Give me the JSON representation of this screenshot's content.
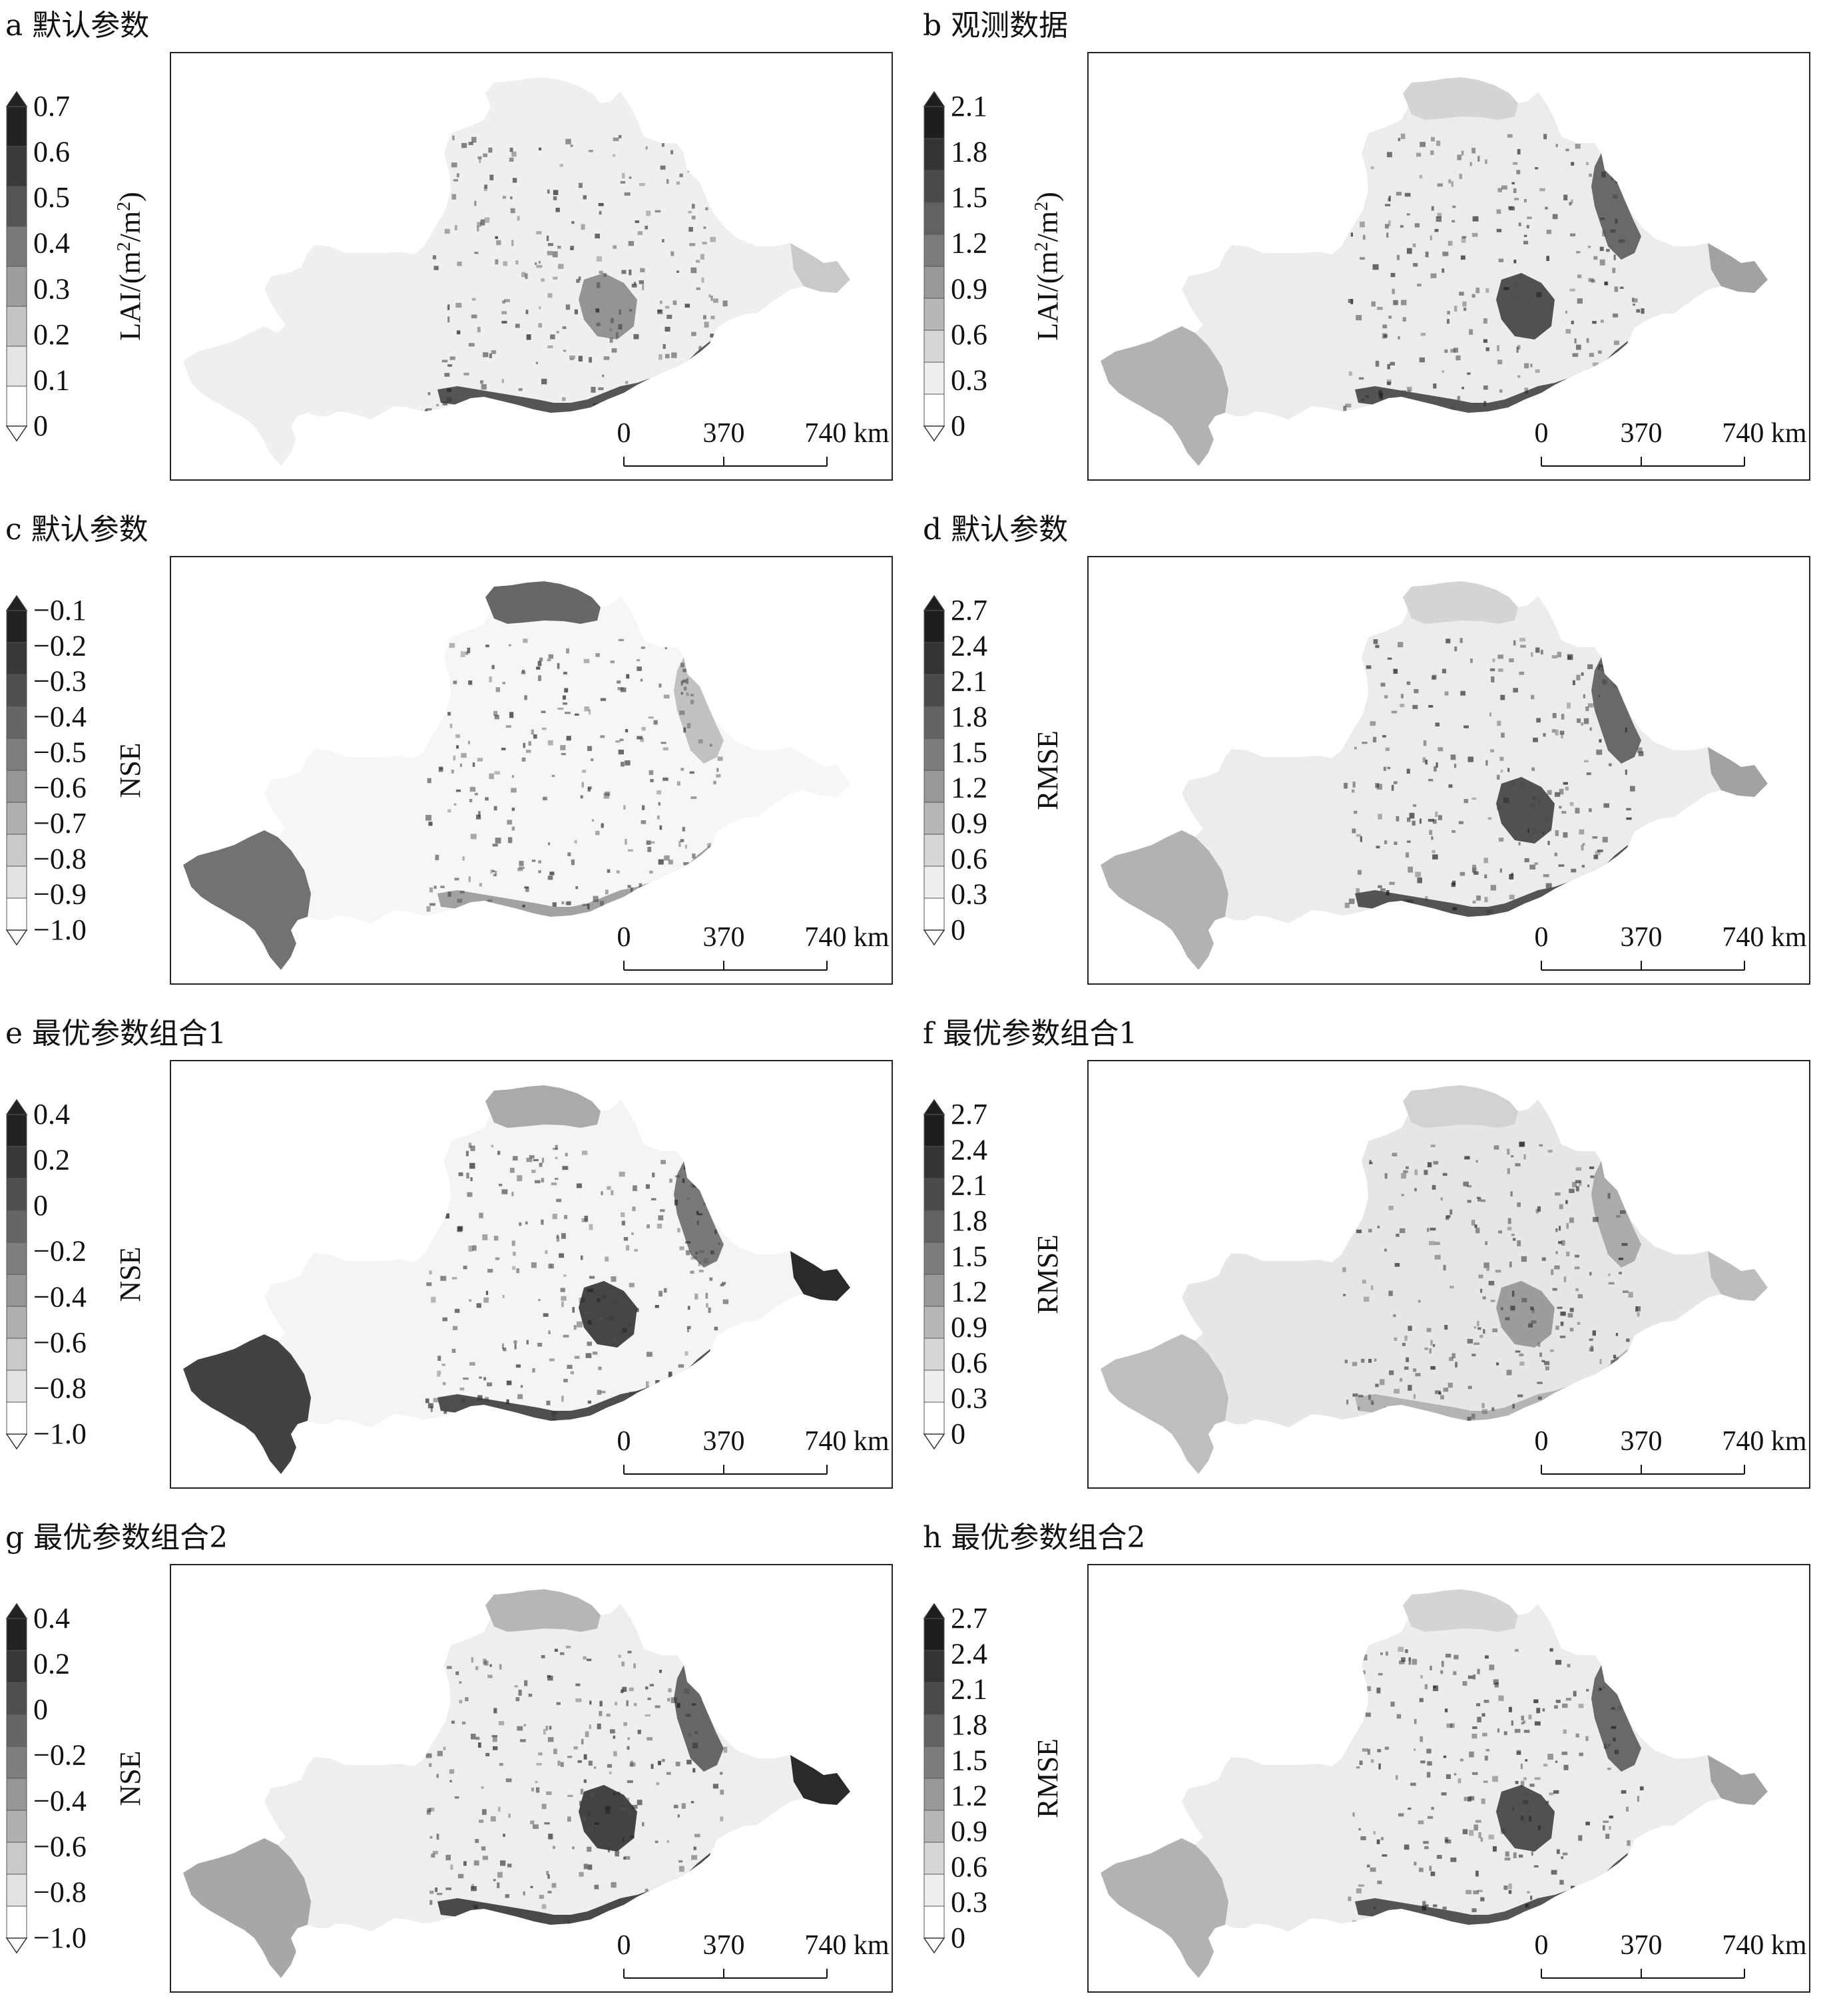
{
  "panels": [
    {
      "id": "a",
      "title": "a 默认参数",
      "legend_title": "LAI/(m²/m²)",
      "legend_title_parts": [
        "LAI/(m",
        "2",
        "/m",
        "2",
        ")"
      ],
      "ticks": [
        "0.7",
        "0.6",
        "0.5",
        "0.4",
        "0.3",
        "0.2",
        "0.1",
        "0"
      ],
      "ramp": [
        "#222222",
        "#3a3a3a",
        "#555555",
        "#7a7a7a",
        "#9e9e9e",
        "#c4c4c4",
        "#e4e4e4",
        "#ffffff"
      ],
      "fill_style": "flat"
    },
    {
      "id": "b",
      "title": "b 观测数据",
      "legend_title": "LAI/(m²/m²)",
      "legend_title_parts": [
        "LAI/(m",
        "2",
        "/m",
        "2",
        ")"
      ],
      "ticks": [
        "2.1",
        "1.8",
        "1.5",
        "1.2",
        "0.9",
        "0.6",
        "0.3",
        "0"
      ],
      "ramp": [
        "#1e1e1e",
        "#333333",
        "#4a4a4a",
        "#626262",
        "#7c7c7c",
        "#989898",
        "#b7b7b7",
        "#d6d6d6",
        "#efefef",
        "#ffffff"
      ],
      "fill_style": "observed"
    },
    {
      "id": "c",
      "title": "c 默认参数",
      "legend_title": "NSE",
      "legend_title_parts": [
        "NSE"
      ],
      "ticks": [
        "−0.1",
        "−0.2",
        "−0.3",
        "−0.4",
        "−0.5",
        "−0.6",
        "−0.7",
        "−0.8",
        "−0.9",
        "−1.0"
      ],
      "ramp": [
        "#222222",
        "#383838",
        "#4f4f4f",
        "#666666",
        "#7e7e7e",
        "#979797",
        "#b0b0b0",
        "#c9c9c9",
        "#e2e2e2",
        "#ffffff"
      ],
      "fill_style": "nse_default"
    },
    {
      "id": "d",
      "title": "d 默认参数",
      "legend_title": "RMSE",
      "legend_title_parts": [
        "RMSE"
      ],
      "ticks": [
        "2.7",
        "2.4",
        "2.1",
        "1.8",
        "1.5",
        "1.2",
        "0.9",
        "0.6",
        "0.3",
        "0"
      ],
      "ramp": [
        "#1e1e1e",
        "#333333",
        "#4a4a4a",
        "#626262",
        "#7c7c7c",
        "#989898",
        "#b7b7b7",
        "#d6d6d6",
        "#efefef",
        "#ffffff"
      ],
      "fill_style": "observed"
    },
    {
      "id": "e",
      "title": "e 最优参数组合1",
      "legend_title": "NSE",
      "legend_title_parts": [
        "NSE"
      ],
      "ticks": [
        "0.4",
        "0.2",
        "0",
        "−0.2",
        "−0.4",
        "−0.6",
        "−0.8",
        "−1.0"
      ],
      "ramp": [
        "#222222",
        "#383838",
        "#4f4f4f",
        "#666666",
        "#7e7e7e",
        "#979797",
        "#b0b0b0",
        "#c9c9c9",
        "#e2e2e2",
        "#ffffff"
      ],
      "fill_style": "nse_opt"
    },
    {
      "id": "f",
      "title": "f 最优参数组合1",
      "legend_title": "RMSE",
      "legend_title_parts": [
        "RMSE"
      ],
      "ticks": [
        "2.7",
        "2.4",
        "2.1",
        "1.8",
        "1.5",
        "1.2",
        "0.9",
        "0.6",
        "0.3",
        "0"
      ],
      "ramp": [
        "#1e1e1e",
        "#333333",
        "#4a4a4a",
        "#626262",
        "#7c7c7c",
        "#989898",
        "#b7b7b7",
        "#d6d6d6",
        "#efefef",
        "#ffffff"
      ],
      "fill_style": "rmse_opt"
    },
    {
      "id": "g",
      "title": "g 最优参数组合2",
      "legend_title": "NSE",
      "legend_title_parts": [
        "NSE"
      ],
      "ticks": [
        "0.4",
        "0.2",
        "0",
        "−0.2",
        "−0.4",
        "−0.6",
        "−0.8",
        "−1.0"
      ],
      "ramp": [
        "#222222",
        "#383838",
        "#4f4f4f",
        "#666666",
        "#7e7e7e",
        "#979797",
        "#b0b0b0",
        "#c9c9c9",
        "#e2e2e2",
        "#ffffff"
      ],
      "fill_style": "nse_opt2"
    },
    {
      "id": "h",
      "title": "h 最优参数组合2",
      "legend_title": "RMSE",
      "legend_title_parts": [
        "RMSE"
      ],
      "ticks": [
        "2.7",
        "2.4",
        "2.1",
        "1.8",
        "1.5",
        "1.2",
        "0.9",
        "0.6",
        "0.3",
        "0"
      ],
      "ramp": [
        "#1e1e1e",
        "#333333",
        "#4a4a4a",
        "#626262",
        "#7c7c7c",
        "#989898",
        "#b7b7b7",
        "#d6d6d6",
        "#efefef",
        "#ffffff"
      ],
      "fill_style": "observed"
    }
  ],
  "scale_bar": {
    "labels": [
      "0",
      "370",
      "740 km"
    ]
  }
}
